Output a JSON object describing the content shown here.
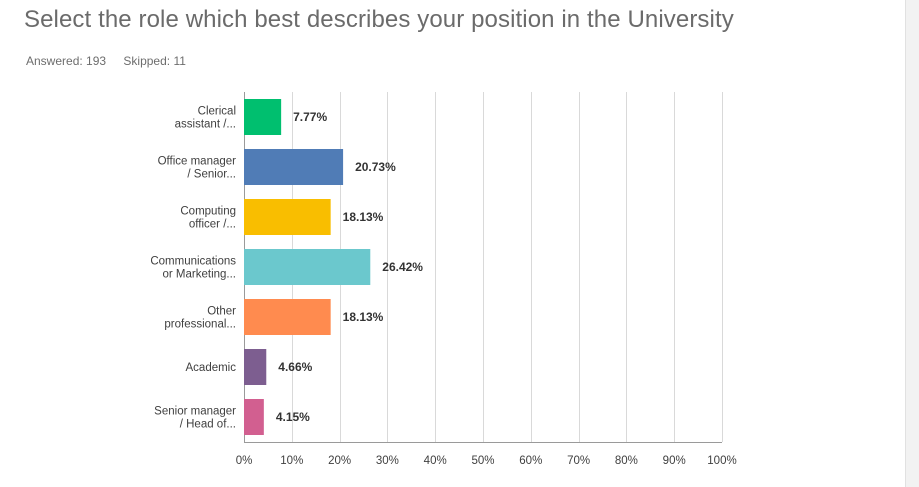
{
  "question": {
    "title": "Select the role which best describes your position in the University",
    "answered": "Answered: 193",
    "skipped": "Skipped: 11"
  },
  "chart_data": {
    "type": "bar",
    "orientation": "horizontal",
    "categories": [
      [
        "Clerical",
        "assistant /..."
      ],
      [
        "Office manager",
        "/ Senior..."
      ],
      [
        "Computing",
        "officer /..."
      ],
      [
        "Communications",
        "or Marketing..."
      ],
      [
        "Other",
        "professional..."
      ],
      [
        "Academic"
      ],
      [
        "Senior manager",
        "/ Head of..."
      ]
    ],
    "values": [
      7.77,
      20.73,
      18.13,
      26.42,
      18.13,
      4.66,
      4.15
    ],
    "value_labels": [
      "7.77%",
      "20.73%",
      "18.13%",
      "26.42%",
      "18.13%",
      "4.66%",
      "4.15%"
    ],
    "colors": [
      "#00bf6f",
      "#507cb6",
      "#f9be00",
      "#6bc8cd",
      "#ff8b4f",
      "#7d5e90",
      "#d25f90"
    ],
    "xlim": [
      0,
      100
    ],
    "xticks": [
      "0%",
      "10%",
      "20%",
      "30%",
      "40%",
      "50%",
      "60%",
      "70%",
      "80%",
      "90%",
      "100%"
    ],
    "grid": true
  }
}
